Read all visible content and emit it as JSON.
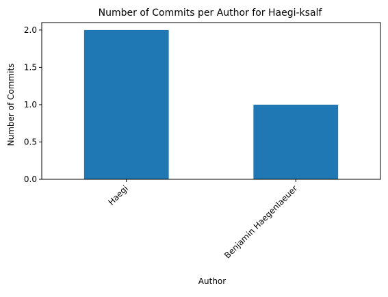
{
  "chart_data": {
    "type": "bar",
    "title": "Number of Commits per Author for Haegi-ksalf",
    "xlabel": "Author",
    "ylabel": "Number of Commits",
    "categories": [
      "Haegi",
      "Benjamin Haegenlaeuer"
    ],
    "values": [
      2,
      1
    ],
    "ylim": [
      0,
      2.1
    ],
    "yticks": [
      "0.0",
      "0.5",
      "1.0",
      "1.5",
      "2.0"
    ],
    "bar_color": "#1f77b4",
    "grid": false,
    "legend": false
  }
}
